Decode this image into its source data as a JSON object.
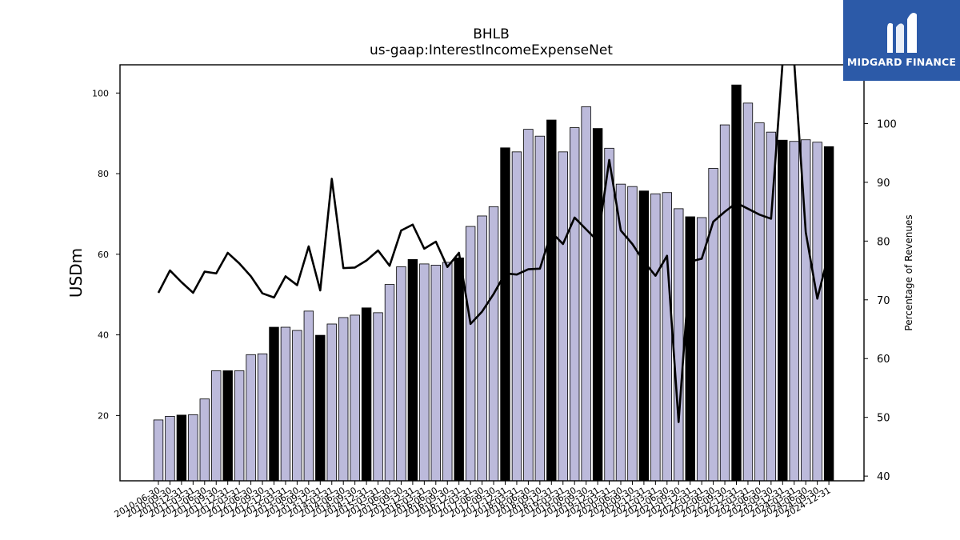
{
  "chart_data": {
    "type": "bar",
    "title": "BHLB",
    "subtitle": "us-gaap:InterestIncomeExpenseNet",
    "ylabel": "USDm",
    "ylabel_right": "Percentage of Revenues",
    "ylim": [
      3.8,
      107
    ],
    "ylim_right": [
      39.2,
      110
    ],
    "yticks": [
      20,
      40,
      60,
      80,
      100
    ],
    "yticks_right": [
      40,
      50,
      60,
      70,
      80,
      90,
      100
    ],
    "colors": {
      "bar": "#bcbadb",
      "bar_highlight": "#000000",
      "line": "#000000"
    },
    "x": [
      "2010-06-30",
      "2010-09-30",
      "2010-12-31",
      "2011-03-31",
      "2011-06-30",
      "2011-09-30",
      "2011-12-31",
      "2012-03-31",
      "2012-06-30",
      "2012-09-30",
      "2012-12-31",
      "2013-03-31",
      "2013-06-30",
      "2013-09-30",
      "2013-12-31",
      "2014-03-31",
      "2014-06-30",
      "2014-09-30",
      "2014-12-31",
      "2015-03-31",
      "2015-06-30",
      "2015-09-30",
      "2015-12-31",
      "2016-03-31",
      "2016-06-30",
      "2016-09-30",
      "2016-12-31",
      "2017-03-31",
      "2017-06-30",
      "2017-09-30",
      "2017-12-31",
      "2018-03-31",
      "2018-06-30",
      "2018-09-30",
      "2018-12-31",
      "2019-03-31",
      "2019-06-30",
      "2019-09-30",
      "2019-12-31",
      "2020-03-31",
      "2020-06-30",
      "2020-09-30",
      "2020-12-31",
      "2021-03-31",
      "2021-06-30",
      "2021-09-30",
      "2021-12-31",
      "2022-03-31",
      "2022-06-30",
      "2022-09-30",
      "2022-12-31",
      "2023-03-31",
      "2023-06-30",
      "2023-09-30",
      "2023-12-31",
      "2024-03-31",
      "2024-06-30",
      "2024-09-30",
      "2024-12-31"
    ],
    "series": [
      {
        "type": "bar",
        "values": [
          18.9,
          19.8,
          20.1,
          20.2,
          24.1,
          31.1,
          31.1,
          31.1,
          35.1,
          35.3,
          41.9,
          41.9,
          41.1,
          45.9,
          39.9,
          42.7,
          44.3,
          44.9,
          46.7,
          45.5,
          52.5,
          56.9,
          58.7,
          57.6,
          57.3,
          58.0,
          59.1,
          66.9,
          69.5,
          71.8,
          86.4,
          85.4,
          91.0,
          89.3,
          93.3,
          85.4,
          91.4,
          96.6,
          91.2,
          86.3,
          77.4,
          76.8,
          75.7,
          75.0,
          75.3,
          71.3,
          69.3,
          69.1,
          81.3,
          92.1,
          102.0,
          97.5,
          92.6,
          90.3,
          88.3,
          88.0,
          88.4,
          87.8,
          86.7
        ],
        "highlight": [
          false,
          false,
          true,
          false,
          false,
          false,
          true,
          false,
          false,
          false,
          true,
          false,
          false,
          false,
          true,
          false,
          false,
          false,
          true,
          false,
          false,
          false,
          true,
          false,
          false,
          false,
          true,
          false,
          false,
          false,
          true,
          false,
          false,
          false,
          true,
          false,
          false,
          false,
          true,
          false,
          false,
          false,
          true,
          false,
          false,
          false,
          true,
          false,
          false,
          false,
          true,
          false,
          false,
          false,
          true,
          false,
          false,
          false,
          true
        ]
      },
      {
        "type": "line",
        "axis": "right",
        "values": [
          71.2,
          75.0,
          73.0,
          71.2,
          74.8,
          74.5,
          78.0,
          76.2,
          74.0,
          71.1,
          70.4,
          74.0,
          72.5,
          79.1,
          71.6,
          90.6,
          75.4,
          75.5,
          76.7,
          78.4,
          75.8,
          81.8,
          82.8,
          78.7,
          79.9,
          75.6,
          78.0,
          65.9,
          68.0,
          71.0,
          74.5,
          74.3,
          75.2,
          75.3,
          81.5,
          79.5,
          84.0,
          82.0,
          80.0,
          93.8,
          81.8,
          79.5,
          76.5,
          74.1,
          77.5,
          49.2,
          76.5,
          77.0,
          83.3,
          85.0,
          86.5,
          85.5,
          84.5,
          83.8,
          110.5,
          110.5,
          81.5,
          70.2,
          78.0
        ]
      }
    ]
  },
  "logo": {
    "text": "MIDGARD FINANCE"
  }
}
